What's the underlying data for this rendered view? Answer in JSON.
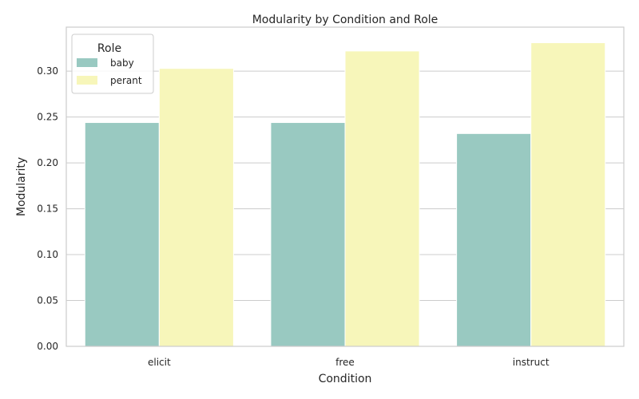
{
  "chart_data": {
    "type": "bar",
    "title": "Modularity by Condition and Role",
    "xlabel": "Condition",
    "ylabel": "Modularity",
    "categories": [
      "elicit",
      "free",
      "instruct"
    ],
    "series": [
      {
        "name": "baby",
        "color": "#99c9c1",
        "values": [
          0.244,
          0.244,
          0.232
        ]
      },
      {
        "name": "perant",
        "color": "#f7f6ba",
        "values": [
          0.303,
          0.322,
          0.331
        ]
      }
    ],
    "ylim": [
      0,
      0.348
    ],
    "yticks": [
      {
        "value": 0,
        "label": "0.00"
      },
      {
        "value": 0.05,
        "label": "0.05"
      },
      {
        "value": 0.1,
        "label": "0.10"
      },
      {
        "value": 0.15,
        "label": "0.15"
      },
      {
        "value": 0.2,
        "label": "0.20"
      },
      {
        "value": 0.25,
        "label": "0.25"
      },
      {
        "value": 0.3,
        "label": "0.30"
      }
    ],
    "grid": true,
    "legend": {
      "title": "Role",
      "placement": "top-left"
    }
  }
}
